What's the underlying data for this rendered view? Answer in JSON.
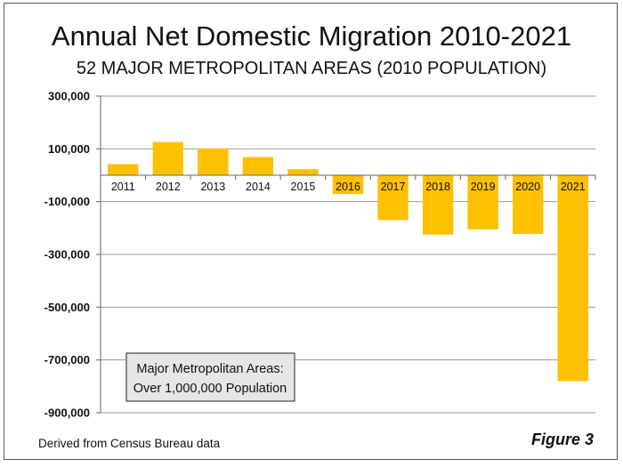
{
  "chart_data": {
    "type": "bar",
    "title": "Annual Net Domestic Migration 2010-2021",
    "subtitle": "52 MAJOR METROPOLITAN AREAS (2010 POPULATION)",
    "categories": [
      "2011",
      "2012",
      "2013",
      "2014",
      "2015",
      "2016",
      "2017",
      "2018",
      "2019",
      "2020",
      "2021"
    ],
    "values": [
      42000,
      126000,
      101000,
      69000,
      23000,
      -71000,
      -170000,
      -225000,
      -205000,
      -222000,
      -780000
    ],
    "ylim": [
      -900000,
      300000
    ],
    "yticks": [
      300000,
      100000,
      -100000,
      -300000,
      -500000,
      -700000,
      -900000
    ],
    "ytick_labels": [
      "300,000",
      "100,000",
      "-100,000",
      "-300,000",
      "-500,000",
      "-700,000",
      "-900,000"
    ],
    "xlabel": "",
    "ylabel": "",
    "grid": true,
    "bar_color": "#FFC000",
    "annotation": [
      "Major Metropolitan Areas:",
      "Over 1,000,000 Population"
    ],
    "source_note": "Derived from Census Bureau data",
    "figure_label": "Figure 3"
  }
}
